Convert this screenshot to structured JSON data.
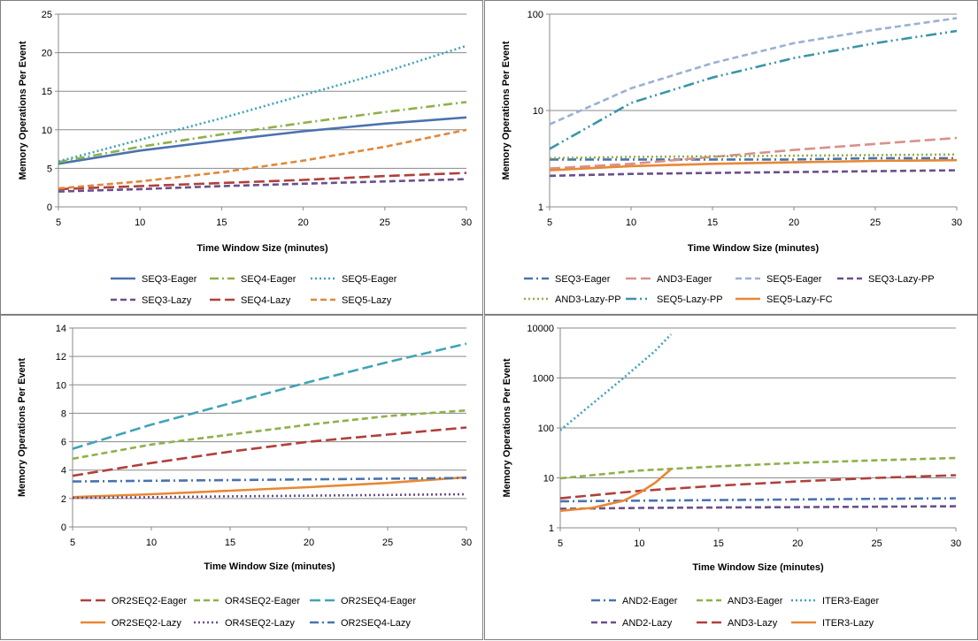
{
  "chart_data": [
    {
      "type": "line",
      "yscale": "linear",
      "xlabel": "Time Window Size (minutes)",
      "ylabel": "Memory Operations Per Event",
      "xlim": [
        5,
        30
      ],
      "ylim": [
        0,
        25
      ],
      "xticks": [
        5,
        10,
        15,
        20,
        25,
        30
      ],
      "yticks": [
        0,
        5,
        10,
        15,
        20,
        25
      ],
      "grid": "horizontal",
      "legend_position": "bottom",
      "series": [
        {
          "name": "SEQ3-Eager",
          "color": "#4a72b0",
          "dash": "solid",
          "x": [
            5,
            10,
            15,
            20,
            25,
            30
          ],
          "y": [
            5.6,
            7.3,
            8.6,
            9.8,
            10.8,
            11.6
          ]
        },
        {
          "name": "SEQ4-Eager",
          "color": "#8fb04a",
          "dash": "dashdot",
          "x": [
            5,
            10,
            15,
            20,
            25,
            30
          ],
          "y": [
            5.8,
            7.8,
            9.4,
            10.9,
            12.3,
            13.6
          ]
        },
        {
          "name": "SEQ5-Eager",
          "color": "#3fa3b8",
          "dash": "dot",
          "x": [
            5,
            10,
            15,
            20,
            25,
            30
          ],
          "y": [
            5.9,
            8.7,
            11.5,
            14.5,
            17.5,
            20.9
          ]
        },
        {
          "name": "SEQ3-Lazy",
          "color": "#6a4f8c",
          "dash": "dash",
          "x": [
            5,
            10,
            15,
            20,
            25,
            30
          ],
          "y": [
            2.0,
            2.3,
            2.7,
            3.0,
            3.3,
            3.6
          ]
        },
        {
          "name": "SEQ4-Lazy",
          "color": "#b0403c",
          "dash": "longdash",
          "x": [
            5,
            10,
            15,
            20,
            25,
            30
          ],
          "y": [
            2.3,
            2.7,
            3.1,
            3.5,
            4.0,
            4.4
          ]
        },
        {
          "name": "SEQ5-Lazy",
          "color": "#e08838",
          "dash": "dash",
          "x": [
            5,
            10,
            15,
            20,
            25,
            30
          ],
          "y": [
            2.4,
            3.3,
            4.5,
            6.0,
            7.8,
            10.0
          ]
        }
      ]
    },
    {
      "type": "line",
      "yscale": "log",
      "xlabel": "Time Window Size (minutes)",
      "ylabel": "Memory Operations Per Event",
      "xlim": [
        5,
        30
      ],
      "ylim": [
        1,
        100
      ],
      "xticks": [
        5,
        10,
        15,
        20,
        25,
        30
      ],
      "yticks": [
        1,
        10,
        100
      ],
      "grid": "horizontal",
      "legend_position": "bottom",
      "series": [
        {
          "name": "SEQ3-Eager",
          "color": "#4a72b0",
          "dash": "dashdot",
          "x": [
            5,
            10,
            15,
            20,
            25,
            30
          ],
          "y": [
            3.1,
            3.1,
            3.1,
            3.1,
            3.2,
            3.2
          ]
        },
        {
          "name": "AND3-Eager",
          "color": "#d9918c",
          "dash": "longdash",
          "x": [
            5,
            10,
            15,
            20,
            25,
            30
          ],
          "y": [
            2.5,
            2.8,
            3.3,
            3.9,
            4.5,
            5.2
          ]
        },
        {
          "name": "SEQ5-Eager",
          "color": "#9bb0d4",
          "dash": "dash",
          "x": [
            5,
            10,
            15,
            20,
            25,
            30
          ],
          "y": [
            7.2,
            17.0,
            31.0,
            50.0,
            69.0,
            91.0
          ]
        },
        {
          "name": "SEQ3-Lazy-PP",
          "color": "#6a4f8c",
          "dash": "dash",
          "x": [
            5,
            10,
            15,
            20,
            25,
            30
          ],
          "y": [
            2.1,
            2.2,
            2.25,
            2.3,
            2.35,
            2.4
          ]
        },
        {
          "name": "AND3-Lazy-PP",
          "color": "#8fb04a",
          "dash": "dot",
          "x": [
            5,
            10,
            15,
            20,
            25,
            30
          ],
          "y": [
            3.2,
            3.3,
            3.35,
            3.4,
            3.45,
            3.5
          ]
        },
        {
          "name": "SEQ5-Lazy-PP",
          "color": "#3a95a8",
          "dash": "dashdotdot",
          "x": [
            5,
            10,
            15,
            20,
            25,
            30
          ],
          "y": [
            4.0,
            12.0,
            22.0,
            35.0,
            50.0,
            67.0
          ]
        },
        {
          "name": "SEQ5-Lazy-FC",
          "color": "#e88834",
          "dash": "solid",
          "x": [
            5,
            10,
            15,
            20,
            25,
            30
          ],
          "y": [
            2.4,
            2.65,
            2.8,
            2.9,
            3.0,
            3.05
          ]
        }
      ]
    },
    {
      "type": "line",
      "yscale": "linear",
      "xlabel": "Time Window Size (minutes)",
      "ylabel": "Memory Operations Per Event",
      "xlim": [
        5,
        30
      ],
      "ylim": [
        0,
        14
      ],
      "xticks": [
        5,
        10,
        15,
        20,
        25,
        30
      ],
      "yticks": [
        0,
        2,
        4,
        6,
        8,
        10,
        12,
        14
      ],
      "grid": "horizontal",
      "legend_position": "bottom",
      "series": [
        {
          "name": "OR2SEQ2-Eager",
          "color": "#b0403c",
          "dash": "longdash",
          "x": [
            5,
            10,
            15,
            20,
            25,
            30
          ],
          "y": [
            3.6,
            4.5,
            5.3,
            6.0,
            6.5,
            7.0
          ]
        },
        {
          "name": "OR4SEQ2-Eager",
          "color": "#8fb04a",
          "dash": "dash",
          "x": [
            5,
            10,
            15,
            20,
            25,
            30
          ],
          "y": [
            4.8,
            5.8,
            6.5,
            7.2,
            7.8,
            8.2
          ]
        },
        {
          "name": "OR2SEQ4-Eager",
          "color": "#3fa3b8",
          "dash": "longdash",
          "x": [
            5,
            10,
            15,
            20,
            25,
            30
          ],
          "y": [
            5.5,
            7.2,
            8.7,
            10.2,
            11.6,
            12.9
          ]
        },
        {
          "name": "OR2SEQ2-Lazy",
          "color": "#e88834",
          "dash": "solid",
          "x": [
            5,
            10,
            15,
            20,
            25,
            30
          ],
          "y": [
            2.1,
            2.3,
            2.55,
            2.8,
            3.1,
            3.5
          ]
        },
        {
          "name": "OR4SEQ2-Lazy",
          "color": "#6a4f8c",
          "dash": "dot",
          "x": [
            5,
            10,
            15,
            20,
            25,
            30
          ],
          "y": [
            2.05,
            2.1,
            2.15,
            2.2,
            2.25,
            2.3
          ]
        },
        {
          "name": "OR2SEQ4-Lazy",
          "color": "#4a72b0",
          "dash": "dashdot",
          "x": [
            5,
            10,
            15,
            20,
            25,
            30
          ],
          "y": [
            3.2,
            3.25,
            3.3,
            3.35,
            3.4,
            3.45
          ]
        }
      ]
    },
    {
      "type": "line",
      "yscale": "log",
      "xlabel": "Time Window Size (minutes)",
      "ylabel": "Memory Operations Per Event",
      "xlim": [
        5,
        30
      ],
      "ylim": [
        1,
        10000
      ],
      "xticks": [
        5,
        10,
        15,
        20,
        25,
        30
      ],
      "yticks": [
        1,
        10,
        100,
        1000,
        10000
      ],
      "grid": "horizontal",
      "legend_position": "bottom",
      "series": [
        {
          "name": "AND2-Eager",
          "color": "#4a72b0",
          "dash": "dashdot",
          "x": [
            5,
            10,
            15,
            20,
            25,
            30
          ],
          "y": [
            3.4,
            3.5,
            3.6,
            3.7,
            3.8,
            3.9
          ]
        },
        {
          "name": "AND3-Eager",
          "color": "#8fb04a",
          "dash": "dash",
          "x": [
            5,
            10,
            15,
            20,
            25,
            30
          ],
          "y": [
            9.8,
            14.0,
            17.0,
            20.0,
            22.5,
            25.0
          ]
        },
        {
          "name": "ITER3-Eager",
          "color": "#3fa3b8",
          "dash": "dot",
          "x": [
            5,
            7,
            9,
            11,
            12
          ],
          "y": [
            90,
            300,
            1000,
            3500,
            7500
          ]
        },
        {
          "name": "AND2-Lazy",
          "color": "#6a4f8c",
          "dash": "dash",
          "x": [
            5,
            10,
            15,
            20,
            25,
            30
          ],
          "y": [
            2.4,
            2.5,
            2.55,
            2.6,
            2.65,
            2.7
          ]
        },
        {
          "name": "AND3-Lazy",
          "color": "#b0403c",
          "dash": "longdash",
          "x": [
            5,
            10,
            15,
            20,
            25,
            30
          ],
          "y": [
            3.9,
            5.5,
            7.0,
            8.5,
            10.0,
            11.3
          ]
        },
        {
          "name": "ITER3-Lazy",
          "color": "#e88834",
          "dash": "solid",
          "x": [
            5,
            7,
            9,
            10,
            11,
            12
          ],
          "y": [
            2.2,
            2.5,
            3.5,
            5.0,
            8.0,
            15.0
          ]
        }
      ]
    }
  ]
}
